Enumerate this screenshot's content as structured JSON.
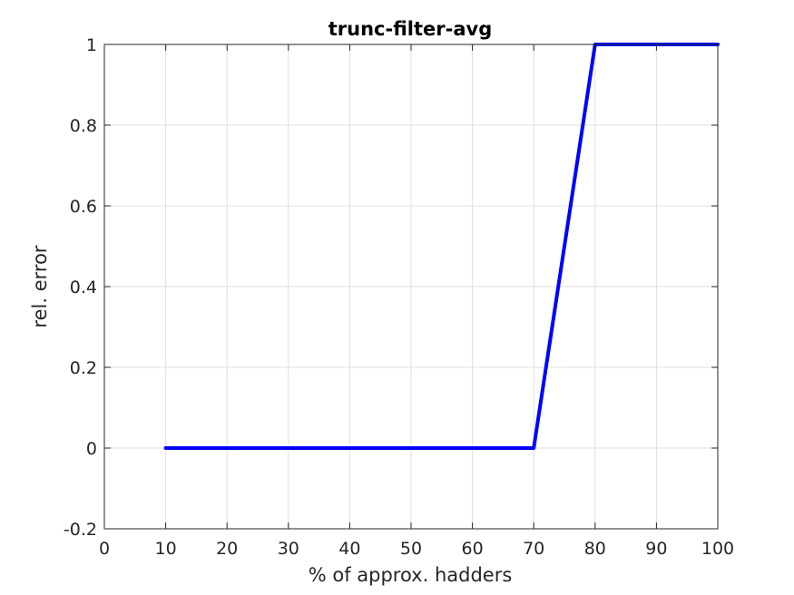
{
  "chart_data": {
    "type": "line",
    "title": "trunc-filter-avg",
    "xlabel": "% of approx. hadders",
    "ylabel": "rel. error",
    "xlim": [
      0,
      100
    ],
    "ylim": [
      -0.2,
      1
    ],
    "xticks": [
      0,
      10,
      20,
      30,
      40,
      50,
      60,
      70,
      80,
      90,
      100
    ],
    "yticks": [
      -0.2,
      0,
      0.2,
      0.4,
      0.6,
      0.8,
      1
    ],
    "xtick_labels": [
      "0",
      "10",
      "20",
      "30",
      "40",
      "50",
      "60",
      "70",
      "80",
      "90",
      "100"
    ],
    "ytick_labels": [
      "-0.2",
      "0",
      "0.2",
      "0.4",
      "0.6",
      "0.8",
      "1"
    ],
    "grid": true,
    "legend": "none",
    "series": [
      {
        "color": "#0000ff",
        "x": [
          10,
          20,
          30,
          40,
          50,
          60,
          70,
          80,
          90,
          100
        ],
        "y": [
          0,
          0,
          0,
          0,
          0,
          0,
          0,
          1,
          1,
          1
        ]
      }
    ]
  }
}
